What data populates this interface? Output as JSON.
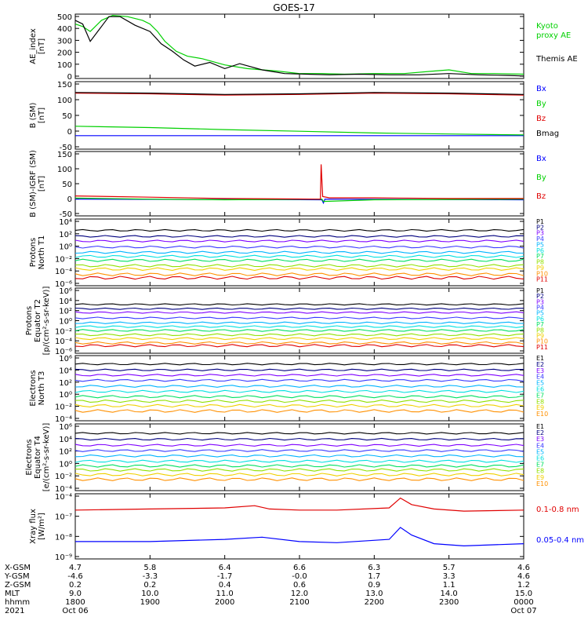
{
  "title": "GOES-17",
  "colors": {
    "black": "#000000",
    "blue": "#0000ff",
    "green": "#00d000",
    "red": "#e00000",
    "navy": "#00007f",
    "purple": "#7f00ff",
    "royal": "#3a3aff",
    "sky": "#00b4ff",
    "cyan": "#00e0e0",
    "lime": "#00e060",
    "lightgreen": "#90e000",
    "yellow": "#f0d000",
    "orange": "#ff9000",
    "darkred": "#e00000"
  },
  "x_axis": {
    "start": "2021-10-06 18:00",
    "end": "2021-10-07 00:00",
    "row_labels": [
      "X-GSM",
      "Y-GSM",
      "Z-GSM",
      "MLT",
      "hhmm",
      "2021"
    ],
    "columns": [
      [
        "4.7",
        "-4.6",
        "0.2",
        "9.0",
        "1800",
        "Oct 06"
      ],
      [
        "5.8",
        "-3.3",
        "0.2",
        "10.0",
        "1900",
        ""
      ],
      [
        "6.4",
        "-1.7",
        "0.4",
        "11.0",
        "2000",
        ""
      ],
      [
        "6.6",
        "-0.0",
        "0.6",
        "12.0",
        "2100",
        ""
      ],
      [
        "6.3",
        "1.7",
        "0.9",
        "13.0",
        "2200",
        ""
      ],
      [
        "5.7",
        "3.3",
        "1.1",
        "14.0",
        "2300",
        ""
      ],
      [
        "4.6",
        "4.6",
        "1.2",
        "15.0",
        "0000",
        "Oct 07"
      ]
    ]
  },
  "panels": [
    {
      "ylabel": [
        "AE_index",
        "[nT]"
      ],
      "ticks": [
        "500",
        "400",
        "300",
        "200",
        "100",
        "0"
      ],
      "legend": [
        "Kyoto",
        "proxy AE",
        "Themis AE"
      ]
    },
    {
      "ylabel": [
        "B (SM)",
        "[nT]"
      ],
      "ticks": [
        "150",
        "100",
        "50",
        "0",
        "-50"
      ],
      "legend": [
        "Bx",
        "By",
        "Bz",
        "Bmag"
      ]
    },
    {
      "ylabel": [
        "B (SM)-IGRF (SM)",
        "[nT]"
      ],
      "ticks": [
        "150",
        "100",
        "50",
        "0",
        "-50"
      ],
      "legend": [
        "Bx",
        "By",
        "Bz"
      ]
    },
    {
      "ylabel": [
        "Protons",
        "North T1"
      ],
      "ticks": [
        "10⁴",
        "10²",
        "10⁰",
        "10⁻²",
        "10⁻⁴",
        "10⁻⁶"
      ],
      "legend": [
        "P1",
        "P2",
        "P3",
        "P4",
        "P5",
        "P6",
        "P7",
        "P8",
        "P9",
        "P10",
        "P11"
      ]
    },
    {
      "ylabel": [
        "Protons",
        "Equator T2",
        "[p/(cm²-s-sr-keV)]"
      ],
      "ticks": [
        "10⁶",
        "10⁴",
        "10²",
        "10⁰",
        "10⁻²",
        "10⁻⁴",
        "10⁻⁶"
      ],
      "legend": [
        "P1",
        "P2",
        "P3",
        "P4",
        "P5",
        "P6",
        "P7",
        "P8",
        "P9",
        "P10",
        "P11"
      ]
    },
    {
      "ylabel": [
        "Electrons",
        "North T3"
      ],
      "ticks": [
        "10⁶",
        "10⁴",
        "10²",
        "10⁰",
        "10⁻²",
        "10⁻⁴"
      ],
      "legend": [
        "E1",
        "E2",
        "E3",
        "E4",
        "E5",
        "E6",
        "E7",
        "E8",
        "E9",
        "E10"
      ]
    },
    {
      "ylabel": [
        "Electrons",
        "Equator T4",
        "[e/(cm²-s-sr-keV)]"
      ],
      "ticks": [
        "10⁶",
        "10⁴",
        "10²",
        "10⁰",
        "10⁻²",
        "10⁻⁴"
      ],
      "legend": [
        "E1",
        "E2",
        "E3",
        "E4",
        "E5",
        "E6",
        "E7",
        "E8",
        "E9",
        "E10"
      ]
    },
    {
      "ylabel": [
        "Xray flux",
        "[W/m²]"
      ],
      "ticks": [
        "10⁻⁴",
        "10⁻⁷",
        "10⁻⁸",
        "10⁻⁹"
      ],
      "legend": [
        "0.1-0.8 nm",
        "0.05-0.4 nm"
      ]
    }
  ],
  "chart_data": {
    "type": "line",
    "x_unit": "hours since 18:00 UT, 2021-10-06",
    "panels": [
      {
        "name": "AE index",
        "ylim": [
          0,
          520
        ],
        "series": [
          {
            "name": "Kyoto proxy AE",
            "color": "green",
            "x": [
              0,
              0.1,
              0.2,
              0.35,
              0.5,
              0.7,
              0.9,
              1.0,
              1.1,
              1.2,
              1.35,
              1.5,
              1.7,
              2.0,
              2.3,
              2.7,
              3.0,
              3.3,
              3.6,
              4.0,
              4.4,
              4.8,
              5.0,
              5.3,
              5.6,
              6.0
            ],
            "y": [
              440,
              420,
              380,
              470,
              510,
              500,
              470,
              440,
              380,
              300,
              220,
              180,
              160,
              110,
              80,
              60,
              40,
              40,
              35,
              40,
              40,
              60,
              70,
              40,
              40,
              35
            ]
          },
          {
            "name": "Themis AE",
            "color": "black",
            "x": [
              0,
              0.1,
              0.2,
              0.35,
              0.45,
              0.6,
              0.8,
              1.0,
              1.15,
              1.3,
              1.45,
              1.6,
              1.8,
              2.0,
              2.2,
              2.5,
              2.8,
              3.1,
              3.4,
              3.8,
              4.2,
              4.6,
              5.0,
              5.4,
              5.8,
              6.0
            ],
            "y": [
              470,
              440,
              300,
              420,
              500,
              500,
              430,
              380,
              280,
              220,
              150,
              100,
              130,
              80,
              120,
              70,
              40,
              35,
              30,
              35,
              30,
              30,
              40,
              30,
              25,
              20
            ]
          }
        ]
      },
      {
        "name": "B (SM)",
        "ylim": [
          -50,
          150
        ],
        "series": [
          {
            "name": "Bx",
            "color": "blue",
            "x": [
              0,
              6
            ],
            "y": [
              -10,
              -10
            ]
          },
          {
            "name": "By",
            "color": "green",
            "x": [
              0,
              1,
              2,
              3,
              4,
              5,
              6
            ],
            "y": [
              18,
              14,
              8,
              3,
              -2,
              -5,
              -8
            ]
          },
          {
            "name": "Bz",
            "color": "red",
            "x": [
              0,
              1,
              2,
              3,
              4,
              5,
              6
            ],
            "y": [
              116,
              114,
              110,
              112,
              116,
              114,
              110
            ]
          },
          {
            "name": "Bmag",
            "color": "black",
            "x": [
              0,
              1,
              2,
              3,
              4,
              5,
              6
            ],
            "y": [
              118,
              116,
              112,
              114,
              118,
              116,
              112
            ]
          }
        ]
      },
      {
        "name": "B (SM)-IGRF (SM)",
        "ylim": [
          -50,
          150
        ],
        "series": [
          {
            "name": "Bx",
            "color": "blue",
            "x": [
              0,
              3.3,
              3.32,
              3.34,
              6
            ],
            "y": [
              2,
              0,
              -10,
              2,
              0
            ]
          },
          {
            "name": "By",
            "color": "green",
            "x": [
              0,
              1,
              2,
              3.3,
              3.32,
              4,
              6
            ],
            "y": [
              5,
              2,
              0,
              2,
              -5,
              0,
              2
            ]
          },
          {
            "name": "Bz",
            "color": "red",
            "x": [
              0,
              1,
              2,
              3.28,
              3.29,
              3.31,
              3.4,
              4,
              5,
              6
            ],
            "y": [
              12,
              8,
              4,
              2,
              110,
              10,
              6,
              6,
              4,
              4
            ]
          }
        ]
      },
      {
        "name": "Protons North T1",
        "log": true,
        "ylim": [
          -6,
          4
        ],
        "series_exponents": [
          2.3,
          1.4,
          0.7,
          -0.2,
          -1.0,
          -1.6,
          -2.2,
          -3.0,
          -3.5,
          -4.3,
          -4.8
        ]
      },
      {
        "name": "Protons Equator T2",
        "log": true,
        "ylim": [
          -6,
          6
        ],
        "series_exponents": [
          3.0,
          2.2,
          1.5,
          0.5,
          -0.4,
          -1.1,
          -1.8,
          -2.6,
          -3.3,
          -4.1,
          -4.6
        ]
      },
      {
        "name": "Electrons North T3",
        "log": true,
        "ylim": [
          -4,
          6
        ],
        "series_exponents": [
          4.7,
          3.8,
          3.0,
          2.2,
          1.3,
          0.5,
          -0.3,
          -1.0,
          -1.7,
          -2.5
        ]
      },
      {
        "name": "Electrons Equator T4",
        "log": true,
        "ylim": [
          -4,
          6
        ],
        "series_exponents": [
          4.6,
          3.7,
          2.8,
          2.0,
          1.2,
          0.4,
          -0.3,
          -0.9,
          -1.6,
          -2.3
        ]
      },
      {
        "name": "Xray flux",
        "log": true,
        "ylim": [
          -9,
          -6
        ],
        "series": [
          {
            "name": "0.1-0.8 nm",
            "color": "red",
            "x": [
              0,
              1,
              2,
              2.4,
              2.6,
              3,
              3.5,
              4.2,
              4.35,
              4.5,
              4.8,
              5.2,
              6
            ],
            "y": [
              -6.75,
              -6.7,
              -6.65,
              -6.55,
              -6.7,
              -6.75,
              -6.75,
              -6.65,
              -6.2,
              -6.5,
              -6.7,
              -6.8,
              -6.75
            ]
          },
          {
            "name": "0.05-0.4 nm",
            "color": "blue",
            "x": [
              0,
              1,
              2,
              2.5,
              3,
              3.5,
              4.2,
              4.35,
              4.5,
              4.8,
              5.2,
              6
            ],
            "y": [
              -8.2,
              -8.2,
              -8.1,
              -8.0,
              -8.2,
              -8.25,
              -8.1,
              -7.55,
              -7.9,
              -8.3,
              -8.4,
              -8.3
            ]
          }
        ]
      }
    ]
  }
}
